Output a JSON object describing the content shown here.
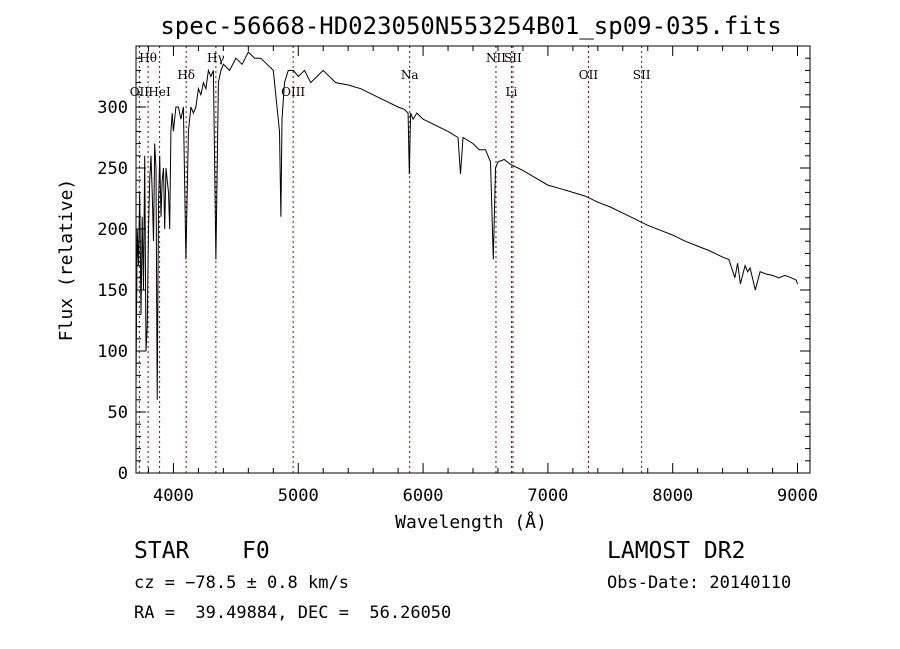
{
  "chart_data": {
    "type": "line",
    "title": "spec-56668-HD023050N553254B01_sp09-035.fits",
    "xlabel": "Wavelength (Å)",
    "ylabel": "Flux (relative)",
    "xlim": [
      3700,
      9100
    ],
    "ylim": [
      0,
      350
    ],
    "xticks": [
      4000,
      5000,
      6000,
      7000,
      8000,
      9000
    ],
    "yticks": [
      0,
      50,
      100,
      150,
      200,
      250,
      300
    ],
    "grid": false,
    "line_color": "#000000",
    "marker_color": "#8b0000",
    "series": [
      {
        "x": [
          3700,
          3710,
          3720,
          3730,
          3740,
          3750,
          3760,
          3770,
          3780,
          3790,
          3800,
          3810,
          3820,
          3830,
          3840,
          3850,
          3860,
          3870,
          3880,
          3890,
          3900,
          3910,
          3920,
          3930,
          3940,
          3950,
          3960,
          3970,
          3980,
          3990,
          4000,
          4020,
          4040,
          4060,
          4080,
          4100,
          4120,
          4140,
          4160,
          4180,
          4200,
          4220,
          4240,
          4260,
          4280,
          4300,
          4320,
          4340,
          4360,
          4380,
          4400,
          4450,
          4500,
          4550,
          4600,
          4650,
          4700,
          4750,
          4800,
          4830,
          4850,
          4861,
          4870,
          4890,
          4920,
          4960,
          5000,
          5050,
          5100,
          5150,
          5200,
          5300,
          5400,
          5500,
          5600,
          5700,
          5800,
          5850,
          5880,
          5890,
          5900,
          5920,
          5950,
          6000,
          6100,
          6200,
          6280,
          6300,
          6320,
          6400,
          6450,
          6500,
          6540,
          6563,
          6580,
          6600,
          6650,
          6700,
          6800,
          6900,
          7000,
          7100,
          7200,
          7300,
          7400,
          7500,
          7600,
          7700,
          7800,
          7900,
          8000,
          8100,
          8200,
          8300,
          8400,
          8450,
          8498,
          8520,
          8542,
          8580,
          8600,
          8620,
          8662,
          8700,
          8750,
          8800,
          8850,
          8900,
          8950,
          8990,
          9000
        ],
        "y": [
          70,
          200,
          170,
          230,
          130,
          210,
          150,
          260,
          100,
          120,
          200,
          240,
          260,
          230,
          190,
          270,
          250,
          60,
          220,
          260,
          210,
          240,
          250,
          200,
          250,
          240,
          230,
          200,
          280,
          295,
          280,
          300,
          300,
          290,
          300,
          175,
          280,
          300,
          295,
          300,
          315,
          310,
          320,
          315,
          330,
          325,
          330,
          175,
          320,
          330,
          335,
          330,
          340,
          335,
          345,
          340,
          340,
          335,
          330,
          300,
          280,
          210,
          290,
          320,
          330,
          330,
          325,
          330,
          320,
          325,
          330,
          320,
          318,
          315,
          310,
          305,
          300,
          298,
          295,
          245,
          295,
          290,
          295,
          290,
          285,
          280,
          275,
          245,
          275,
          270,
          265,
          265,
          255,
          175,
          250,
          255,
          257,
          253,
          248,
          242,
          236,
          233,
          230,
          227,
          222,
          218,
          213,
          208,
          203,
          199,
          195,
          190,
          186,
          182,
          177,
          175,
          160,
          172,
          155,
          170,
          165,
          168,
          150,
          165,
          163,
          162,
          160,
          162,
          160,
          158,
          155
        ]
      }
    ],
    "line_markers": [
      {
        "label": "Hθ",
        "x": 3797,
        "row": 1
      },
      {
        "label": "OII",
        "x": 3727,
        "row": 3
      },
      {
        "label": "HeI",
        "x": 3889,
        "row": 3
      },
      {
        "label": "Hδ",
        "x": 4102,
        "row": 2
      },
      {
        "label": "Hγ",
        "x": 4340,
        "row": 1
      },
      {
        "label": "OIII",
        "x": 4959,
        "row": 3
      },
      {
        "label": "Na",
        "x": 5893,
        "row": 2
      },
      {
        "label": "NII",
        "x": 6584,
        "row": 1
      },
      {
        "label": "SII",
        "x": 6720,
        "row": 1
      },
      {
        "label": "Li",
        "x": 6708,
        "row": 3
      },
      {
        "label": "OII",
        "x": 7325,
        "row": 2
      },
      {
        "label": "SII",
        "x": 7751,
        "row": 2
      }
    ]
  },
  "footer": {
    "object_class": "STAR",
    "subclass": "F0",
    "survey": "LAMOST DR2",
    "cz": "cz = −78.5 ± 0.8 km/s",
    "obs_date": "Obs-Date: 20140110",
    "coords": "RA =  39.49884, DEC =  56.26050"
  }
}
